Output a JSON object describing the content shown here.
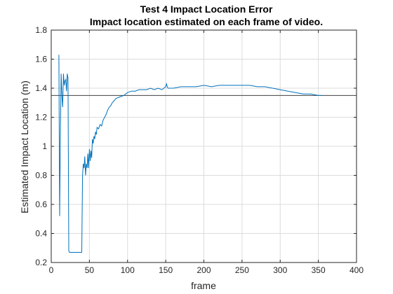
{
  "chart_data": {
    "type": "line",
    "title": "Test 4 Impact Location Error",
    "subtitle": "Impact location estimated on each frame of video.",
    "xlabel": "frame",
    "ylabel": "Estimated Impact Location (m)",
    "xlim": [
      0,
      400
    ],
    "ylim": [
      0.2,
      1.8
    ],
    "xticks": [
      0,
      50,
      100,
      150,
      200,
      250,
      300,
      350,
      400
    ],
    "yticks": [
      0.2,
      0.4,
      0.6,
      0.8,
      1,
      1.2,
      1.4,
      1.6,
      1.8
    ],
    "xtick_labels": [
      "0",
      "50",
      "100",
      "150",
      "200",
      "250",
      "300",
      "350",
      "400"
    ],
    "ytick_labels": [
      "0.2",
      "0.4",
      "0.6",
      "0.8",
      "1",
      "1.2",
      "1.4",
      "1.6",
      "1.8"
    ],
    "grid": true,
    "colors": {
      "series": "#0072bd",
      "reference": "#404040"
    },
    "reference_line": {
      "y": 1.35
    },
    "series": [
      {
        "x": [
          10,
          11,
          12,
          13,
          14,
          15,
          16,
          17,
          18,
          19,
          20,
          21,
          22,
          23,
          24,
          30,
          35,
          40,
          41,
          42,
          43,
          44,
          45,
          46,
          47,
          48,
          49,
          50,
          51,
          52,
          53,
          54,
          55,
          56,
          57,
          58,
          59,
          60,
          62,
          64,
          66,
          68,
          70,
          72,
          74,
          76,
          78,
          80,
          85,
          90,
          95,
          100,
          105,
          110,
          115,
          120,
          125,
          130,
          135,
          140,
          145,
          150,
          151,
          152,
          153,
          155,
          160,
          170,
          180,
          190,
          200,
          210,
          220,
          230,
          240,
          250,
          260,
          270,
          280,
          290,
          300,
          310,
          320,
          330,
          340,
          350,
          355
        ],
        "y": [
          1.63,
          0.52,
          1.05,
          1.5,
          1.35,
          1.27,
          1.5,
          1.42,
          1.45,
          1.46,
          1.38,
          1.5,
          1.47,
          0.28,
          0.27,
          0.27,
          0.27,
          0.27,
          0.8,
          0.88,
          0.85,
          0.93,
          0.8,
          0.88,
          0.85,
          0.95,
          0.85,
          0.98,
          0.9,
          0.97,
          0.92,
          1.05,
          1.02,
          1.07,
          1.05,
          1.1,
          1.08,
          1.13,
          1.12,
          1.15,
          1.14,
          1.18,
          1.2,
          1.22,
          1.25,
          1.27,
          1.28,
          1.3,
          1.33,
          1.34,
          1.35,
          1.37,
          1.38,
          1.38,
          1.39,
          1.39,
          1.39,
          1.4,
          1.39,
          1.4,
          1.39,
          1.41,
          1.43,
          1.41,
          1.4,
          1.4,
          1.4,
          1.41,
          1.41,
          1.41,
          1.42,
          1.41,
          1.42,
          1.42,
          1.42,
          1.42,
          1.42,
          1.41,
          1.41,
          1.4,
          1.39,
          1.38,
          1.37,
          1.36,
          1.36,
          1.35,
          1.35
        ]
      }
    ]
  }
}
